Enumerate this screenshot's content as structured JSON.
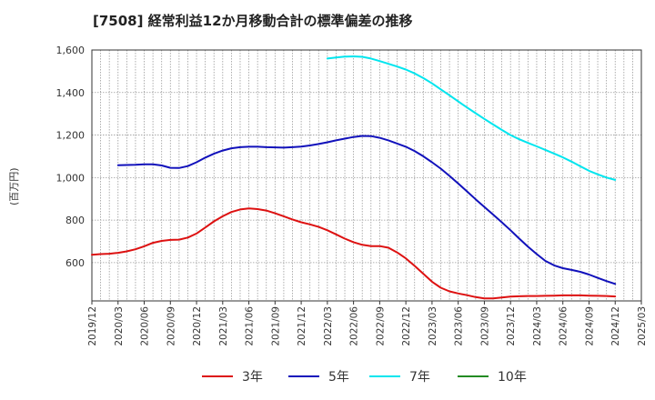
{
  "chart_data": {
    "type": "line",
    "title": "[7508]  経常利益12か月移動合計の標準偏差の推移",
    "ylabel": "(百万円)",
    "ylim": [
      420,
      1600
    ],
    "yticks": [
      600,
      800,
      1000,
      1200,
      1400,
      1600
    ],
    "ytick_labels": [
      "600",
      "800",
      "1,000",
      "1,200",
      "1,400",
      "1,600"
    ],
    "xticks": [
      "2019/12",
      "2020/03",
      "2020/06",
      "2020/09",
      "2020/12",
      "2021/03",
      "2021/06",
      "2021/09",
      "2021/12",
      "2022/03",
      "2022/06",
      "2022/09",
      "2022/12",
      "2023/03",
      "2023/06",
      "2023/09",
      "2023/12",
      "2024/03",
      "2024/06",
      "2024/09",
      "2024/12",
      "2025/03"
    ],
    "grid": true,
    "legend_position": "bottom",
    "series": [
      {
        "name": "3年",
        "color": "#dd1111",
        "values": [
          [
            "2019/12",
            637
          ],
          [
            "2020/01",
            640
          ],
          [
            "2020/02",
            642
          ],
          [
            "2020/03",
            646
          ],
          [
            "2020/04",
            653
          ],
          [
            "2020/05",
            663
          ],
          [
            "2020/06",
            677
          ],
          [
            "2020/07",
            693
          ],
          [
            "2020/08",
            702
          ],
          [
            "2020/09",
            707
          ],
          [
            "2020/10",
            708
          ],
          [
            "2020/11",
            718
          ],
          [
            "2020/12",
            737
          ],
          [
            "2021/01",
            765
          ],
          [
            "2021/02",
            794
          ],
          [
            "2021/03",
            818
          ],
          [
            "2021/04",
            838
          ],
          [
            "2021/05",
            850
          ],
          [
            "2021/06",
            855
          ],
          [
            "2021/07",
            852
          ],
          [
            "2021/08",
            845
          ],
          [
            "2021/09",
            832
          ],
          [
            "2021/10",
            818
          ],
          [
            "2021/11",
            803
          ],
          [
            "2021/12",
            790
          ],
          [
            "2022/01",
            780
          ],
          [
            "2022/02",
            768
          ],
          [
            "2022/03",
            752
          ],
          [
            "2022/04",
            733
          ],
          [
            "2022/05",
            713
          ],
          [
            "2022/06",
            696
          ],
          [
            "2022/07",
            684
          ],
          [
            "2022/08",
            678
          ],
          [
            "2022/09",
            678
          ],
          [
            "2022/10",
            670
          ],
          [
            "2022/11",
            648
          ],
          [
            "2022/12",
            620
          ],
          [
            "2023/01",
            585
          ],
          [
            "2023/02",
            548
          ],
          [
            "2023/03",
            510
          ],
          [
            "2023/04",
            482
          ],
          [
            "2023/05",
            465
          ],
          [
            "2023/06",
            455
          ],
          [
            "2023/07",
            447
          ],
          [
            "2023/08",
            438
          ],
          [
            "2023/09",
            432
          ],
          [
            "2023/10",
            432
          ],
          [
            "2023/11",
            436
          ],
          [
            "2023/12",
            440
          ],
          [
            "2024/01",
            442
          ],
          [
            "2024/02",
            443
          ],
          [
            "2024/03",
            443
          ],
          [
            "2024/04",
            444
          ],
          [
            "2024/05",
            445
          ],
          [
            "2024/06",
            446
          ],
          [
            "2024/07",
            446
          ],
          [
            "2024/08",
            446
          ],
          [
            "2024/09",
            445
          ],
          [
            "2024/10",
            444
          ],
          [
            "2024/11",
            443
          ],
          [
            "2024/12",
            441
          ]
        ]
      },
      {
        "name": "5年",
        "color": "#1111bb",
        "values": [
          [
            "2020/03",
            1058
          ],
          [
            "2020/04",
            1059
          ],
          [
            "2020/05",
            1060
          ],
          [
            "2020/06",
            1062
          ],
          [
            "2020/07",
            1062
          ],
          [
            "2020/08",
            1057
          ],
          [
            "2020/09",
            1046
          ],
          [
            "2020/10",
            1045
          ],
          [
            "2020/11",
            1054
          ],
          [
            "2020/12",
            1072
          ],
          [
            "2021/01",
            1094
          ],
          [
            "2021/02",
            1112
          ],
          [
            "2021/03",
            1127
          ],
          [
            "2021/04",
            1138
          ],
          [
            "2021/05",
            1143
          ],
          [
            "2021/06",
            1145
          ],
          [
            "2021/07",
            1145
          ],
          [
            "2021/08",
            1143
          ],
          [
            "2021/09",
            1142
          ],
          [
            "2021/10",
            1141
          ],
          [
            "2021/11",
            1143
          ],
          [
            "2021/12",
            1146
          ],
          [
            "2022/01",
            1151
          ],
          [
            "2022/02",
            1158
          ],
          [
            "2022/03",
            1166
          ],
          [
            "2022/04",
            1175
          ],
          [
            "2022/05",
            1183
          ],
          [
            "2022/06",
            1191
          ],
          [
            "2022/07",
            1196
          ],
          [
            "2022/08",
            1195
          ],
          [
            "2022/09",
            1187
          ],
          [
            "2022/10",
            1175
          ],
          [
            "2022/11",
            1160
          ],
          [
            "2022/12",
            1145
          ],
          [
            "2023/01",
            1125
          ],
          [
            "2023/02",
            1100
          ],
          [
            "2023/03",
            1072
          ],
          [
            "2023/04",
            1042
          ],
          [
            "2023/05",
            1008
          ],
          [
            "2023/06",
            972
          ],
          [
            "2023/07",
            935
          ],
          [
            "2023/08",
            898
          ],
          [
            "2023/09",
            862
          ],
          [
            "2023/10",
            826
          ],
          [
            "2023/11",
            790
          ],
          [
            "2023/12",
            752
          ],
          [
            "2024/01",
            713
          ],
          [
            "2024/02",
            675
          ],
          [
            "2024/03",
            640
          ],
          [
            "2024/04",
            608
          ],
          [
            "2024/05",
            587
          ],
          [
            "2024/06",
            574
          ],
          [
            "2024/07",
            566
          ],
          [
            "2024/08",
            557
          ],
          [
            "2024/09",
            544
          ],
          [
            "2024/10",
            528
          ],
          [
            "2024/11",
            513
          ],
          [
            "2024/12",
            500
          ]
        ]
      },
      {
        "name": "7年",
        "color": "#00e5ee",
        "values": [
          [
            "2022/03",
            1560
          ],
          [
            "2022/04",
            1565
          ],
          [
            "2022/05",
            1569
          ],
          [
            "2022/06",
            1570
          ],
          [
            "2022/07",
            1568
          ],
          [
            "2022/08",
            1560
          ],
          [
            "2022/09",
            1548
          ],
          [
            "2022/10",
            1535
          ],
          [
            "2022/11",
            1522
          ],
          [
            "2022/12",
            1508
          ],
          [
            "2023/01",
            1490
          ],
          [
            "2023/02",
            1468
          ],
          [
            "2023/03",
            1443
          ],
          [
            "2023/04",
            1415
          ],
          [
            "2023/05",
            1387
          ],
          [
            "2023/06",
            1358
          ],
          [
            "2023/07",
            1330
          ],
          [
            "2023/08",
            1303
          ],
          [
            "2023/09",
            1276
          ],
          [
            "2023/10",
            1250
          ],
          [
            "2023/11",
            1224
          ],
          [
            "2023/12",
            1200
          ],
          [
            "2024/01",
            1180
          ],
          [
            "2024/02",
            1163
          ],
          [
            "2024/03",
            1147
          ],
          [
            "2024/04",
            1130
          ],
          [
            "2024/05",
            1113
          ],
          [
            "2024/06",
            1095
          ],
          [
            "2024/07",
            1075
          ],
          [
            "2024/08",
            1053
          ],
          [
            "2024/09",
            1032
          ],
          [
            "2024/10",
            1015
          ],
          [
            "2024/11",
            1000
          ],
          [
            "2024/12",
            989
          ]
        ]
      },
      {
        "name": "10年",
        "color": "#228b22",
        "values": []
      }
    ]
  }
}
